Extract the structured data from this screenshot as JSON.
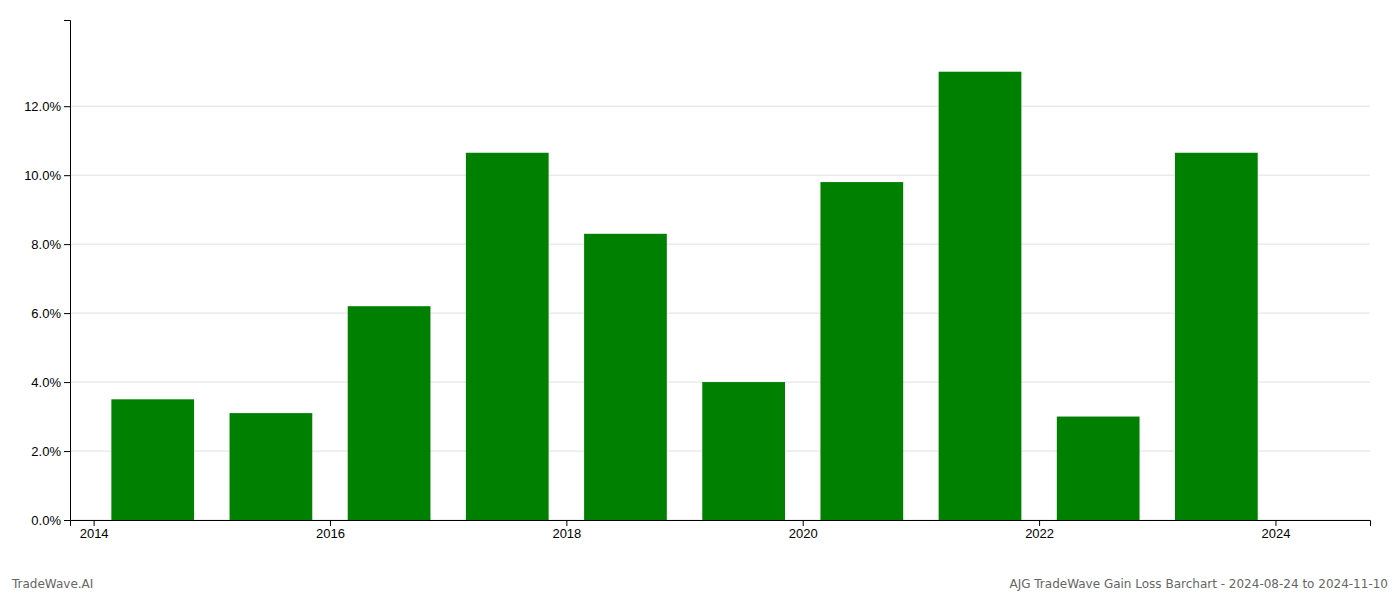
{
  "chart_data": {
    "type": "bar",
    "x": [
      2014,
      2015,
      2016,
      2017,
      2018,
      2019,
      2020,
      2021,
      2022,
      2023
    ],
    "values": [
      0.035,
      0.031,
      0.062,
      0.1065,
      0.083,
      0.04,
      0.098,
      0.13,
      0.03,
      0.1065
    ],
    "color": "#008000",
    "xlim": [
      2013.3,
      2024.3
    ],
    "xticks": [
      {
        "value": 2013.5,
        "label": "2014"
      },
      {
        "value": 2015.5,
        "label": "2016"
      },
      {
        "value": 2017.5,
        "label": "2018"
      },
      {
        "value": 2019.5,
        "label": "2020"
      },
      {
        "value": 2021.5,
        "label": "2022"
      },
      {
        "value": 2023.5,
        "label": "2024"
      }
    ],
    "ylim": [
      0,
      0.145
    ],
    "yticks": [
      {
        "value": 0.0,
        "label": "0.0%"
      },
      {
        "value": 0.02,
        "label": "2.0%"
      },
      {
        "value": 0.04,
        "label": "4.0%"
      },
      {
        "value": 0.06,
        "label": "6.0%"
      },
      {
        "value": 0.08,
        "label": "8.0%"
      },
      {
        "value": 0.1,
        "label": "10.0%"
      },
      {
        "value": 0.12,
        "label": "12.0%"
      }
    ],
    "grid": true,
    "annotations": [
      "TradeWave.AI",
      "AJG TradeWave Gain Loss Barchart - 2024-08-24 to 2024-11-10"
    ]
  }
}
